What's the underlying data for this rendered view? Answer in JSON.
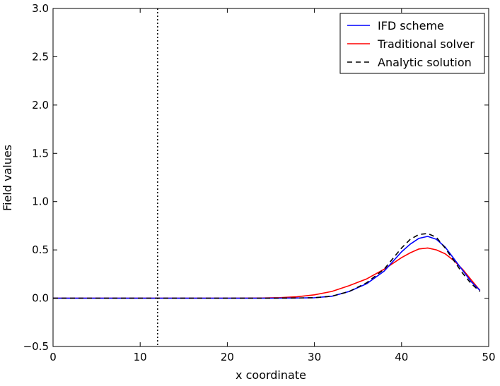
{
  "chart_data": {
    "type": "line",
    "title": "",
    "xlabel": "x coordinate",
    "ylabel": "Field values",
    "xlim": [
      0,
      50
    ],
    "ylim": [
      -0.5,
      3.0
    ],
    "xticks": [
      0,
      10,
      20,
      30,
      40,
      50
    ],
    "yticks": [
      -0.5,
      0.0,
      0.5,
      1.0,
      1.5,
      2.0,
      2.5,
      3.0
    ],
    "xtick_labels": [
      "0",
      "10",
      "20",
      "30",
      "40",
      "50"
    ],
    "ytick_labels": [
      "−0.5",
      "0.0",
      "0.5",
      "1.0",
      "1.5",
      "2.0",
      "2.5",
      "3.0"
    ],
    "grid": false,
    "legend_position": "top-right",
    "vline": {
      "x": 12,
      "style": "dotted",
      "color": "#000000"
    },
    "series": [
      {
        "name": "IFD scheme",
        "color": "#0000ff",
        "dash": "solid",
        "x": [
          0,
          5,
          10,
          15,
          20,
          25,
          28,
          30,
          32,
          34,
          36,
          38,
          40,
          41,
          42,
          43,
          44,
          45,
          46,
          47,
          48,
          49
        ],
        "y": [
          0,
          0,
          0,
          0,
          0,
          0,
          0.002,
          0.005,
          0.02,
          0.07,
          0.15,
          0.28,
          0.48,
          0.56,
          0.62,
          0.64,
          0.61,
          0.53,
          0.41,
          0.29,
          0.17,
          0.08
        ]
      },
      {
        "name": "Traditional solver",
        "color": "#ff0000",
        "dash": "solid",
        "x": [
          0,
          5,
          10,
          15,
          20,
          24,
          26,
          28,
          30,
          32,
          34,
          36,
          38,
          40,
          41,
          42,
          43,
          44,
          45,
          46,
          47,
          48,
          49
        ],
        "y": [
          0,
          0,
          0,
          0,
          0,
          0.002,
          0.006,
          0.015,
          0.035,
          0.07,
          0.13,
          0.2,
          0.3,
          0.42,
          0.47,
          0.51,
          0.52,
          0.5,
          0.46,
          0.39,
          0.3,
          0.19,
          0.08
        ]
      },
      {
        "name": "Analytic solution",
        "color": "#000000",
        "dash": "dashed",
        "x": [
          0,
          5,
          10,
          15,
          20,
          25,
          28,
          30,
          32,
          34,
          36,
          38,
          40,
          41,
          42,
          43,
          44,
          45,
          46,
          47,
          48,
          49
        ],
        "y": [
          0,
          0,
          0,
          0,
          0,
          0,
          0.002,
          0.005,
          0.02,
          0.07,
          0.16,
          0.3,
          0.52,
          0.61,
          0.66,
          0.67,
          0.63,
          0.52,
          0.39,
          0.26,
          0.15,
          0.07
        ]
      }
    ]
  }
}
